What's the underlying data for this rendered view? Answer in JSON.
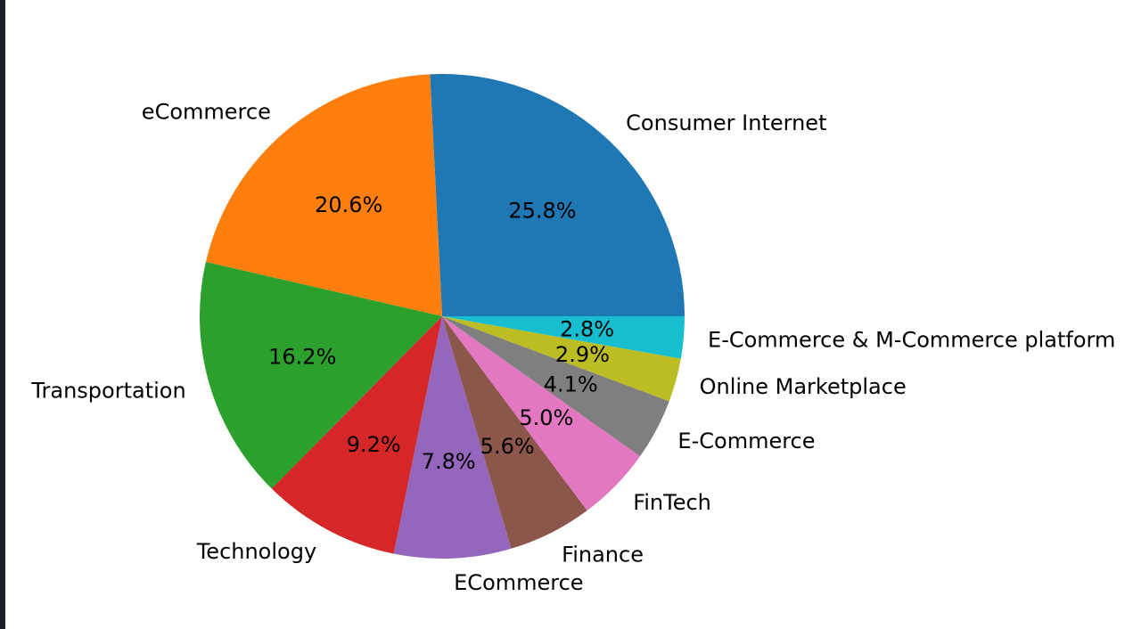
{
  "chart_data": {
    "type": "pie",
    "title": "",
    "categories": [
      "Consumer Internet",
      "eCommerce",
      "Transportation",
      "Technology",
      "ECommerce",
      "Finance",
      "FinTech",
      "E-Commerce",
      "Online Marketplace",
      "E-Commerce & M-Commerce platform"
    ],
    "values": [
      25.8,
      20.6,
      16.2,
      9.2,
      7.8,
      5.6,
      5.0,
      4.1,
      2.9,
      2.8
    ],
    "value_labels": [
      "25.8%",
      "20.6%",
      "16.2%",
      "9.2%",
      "7.8%",
      "5.6%",
      "5.0%",
      "4.1%",
      "2.9%",
      "2.8%"
    ],
    "colors": [
      "#1f77b4",
      "#ff7f0e",
      "#2ca02c",
      "#d62728",
      "#9467bd",
      "#8c564b",
      "#e377c2",
      "#7f7f7f",
      "#bcbd22",
      "#17becf"
    ],
    "start_angle_deg": 0,
    "direction": "counterclockwise"
  }
}
